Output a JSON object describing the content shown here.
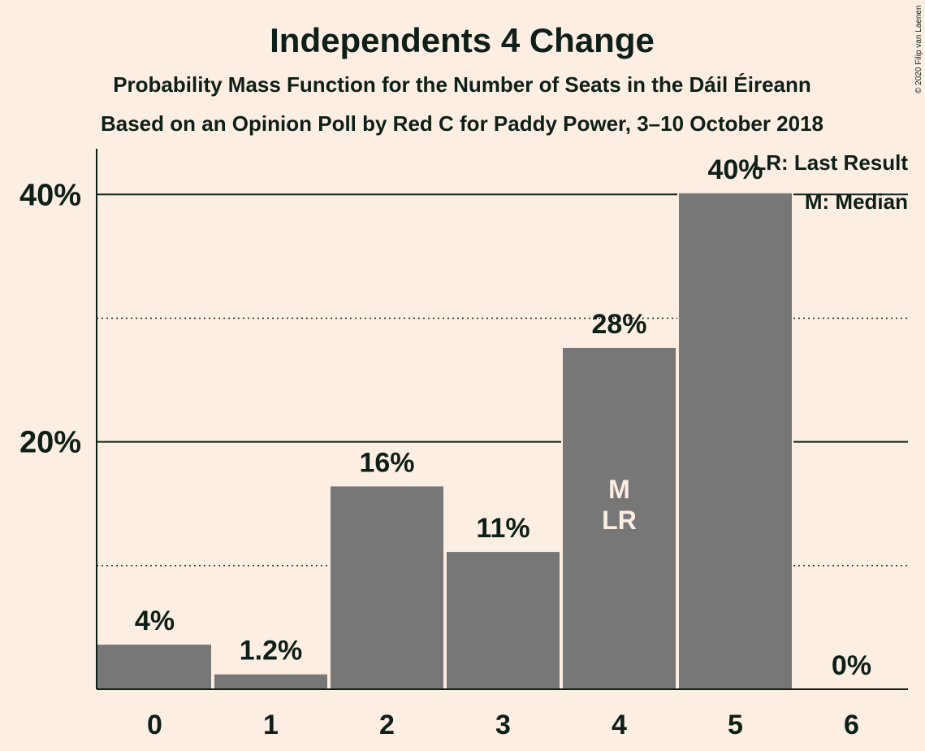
{
  "title": "Independents 4 Change",
  "subtitle_1": "Probability Mass Function for the Number of Seats in the Dáil Éireann",
  "subtitle_2": "Based on an Opinion Poll by Red C for Paddy Power, 3–10 October 2018",
  "copyright": "© 2020 Filip van Laenen",
  "legend": {
    "last_result": "LR: Last Result",
    "median": "M: Median"
  },
  "colors": {
    "background": "#FDEEE3",
    "bar": "#777777",
    "text": "#0d1f16"
  },
  "chart_data": {
    "type": "bar",
    "categories": [
      "0",
      "1",
      "2",
      "3",
      "4",
      "5",
      "6"
    ],
    "values": [
      3.6,
      1.2,
      16.4,
      11.1,
      27.6,
      40.1,
      0
    ],
    "data_labels": [
      "4%",
      "1.2%",
      "16%",
      "11%",
      "28%",
      "40%",
      "0%"
    ],
    "bar_annotations": [
      "",
      "",
      "",
      "",
      "M\nLR",
      "",
      ""
    ],
    "ylim": [
      0,
      43.7
    ],
    "y_ticks": [
      {
        "value": 20,
        "label": "20%"
      },
      {
        "value": 40,
        "label": "40%"
      }
    ],
    "y_minor_gridlines": [
      10,
      30
    ],
    "xlabel": "",
    "ylabel": "",
    "legend_placement": "top-right"
  }
}
